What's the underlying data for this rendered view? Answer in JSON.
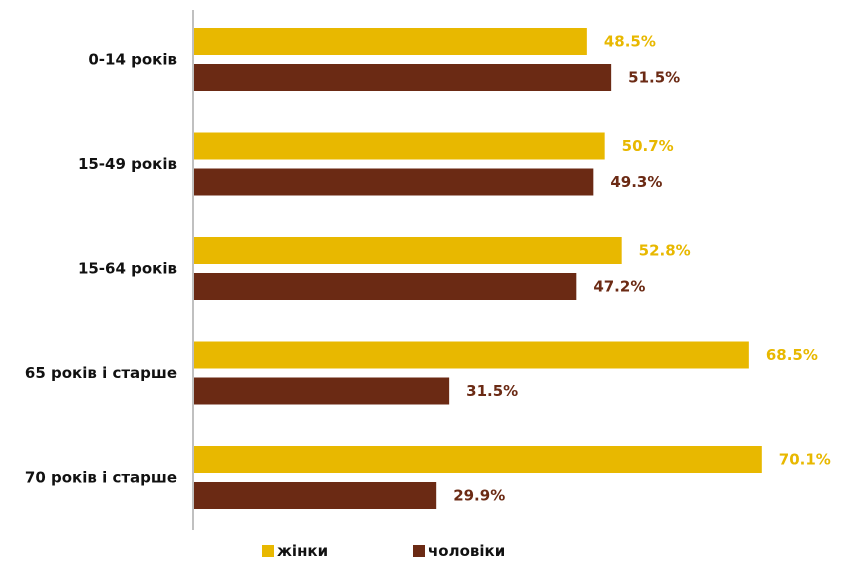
{
  "chart_data": {
    "type": "bar",
    "orientation": "horizontal",
    "categories": [
      "0-14 років",
      "15-49 років",
      "15-64 років",
      "65 років і старше",
      "70 років і старше"
    ],
    "series": [
      {
        "name": "жінки",
        "color": "#E8B800",
        "values": [
          48.5,
          50.7,
          52.8,
          68.5,
          70.1
        ]
      },
      {
        "name": "чоловіки",
        "color": "#6B2A14",
        "values": [
          51.5,
          49.3,
          47.2,
          31.5,
          29.9
        ]
      }
    ],
    "value_suffix": "%",
    "xlim": [
      0,
      80
    ],
    "grid": false,
    "legend_position": "bottom"
  }
}
